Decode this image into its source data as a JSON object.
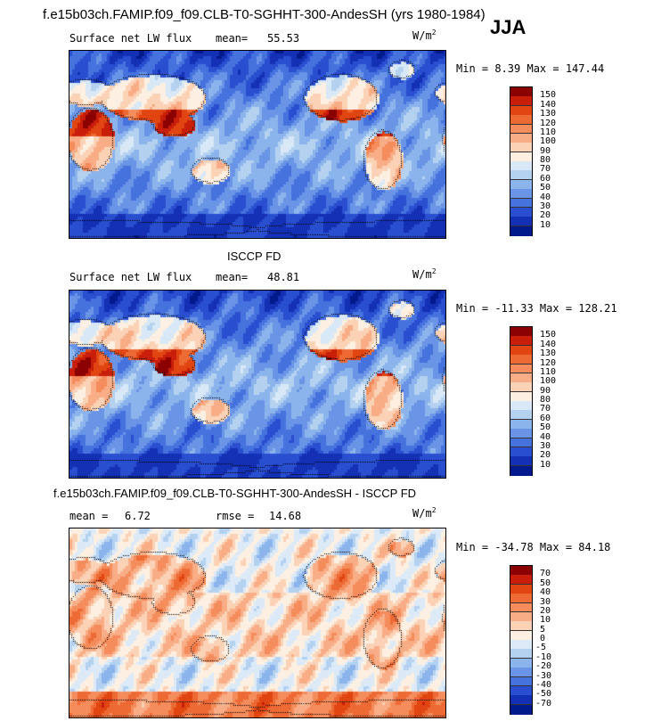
{
  "header": {
    "title": "f.e15b03ch.FAMIP.f09_f09.CLB-T0-SGHHT-300-AndesSH (yrs 1980-1984)",
    "season": "JJA"
  },
  "panels": [
    {
      "id": "model",
      "title": "",
      "variable": "Surface net LW flux",
      "mean_label": "mean=",
      "mean_value": "55.53",
      "units": "W/m",
      "units_exp": "2",
      "minmax": "Min =   8.39 Max = 147.44",
      "colorbar_labels": [
        "150",
        "140",
        "130",
        "120",
        "110",
        "100",
        "90",
        "80",
        "70",
        "60",
        "50",
        "40",
        "30",
        "20",
        "10"
      ],
      "colorbar_colors": [
        "#8b0000",
        "#c81e0a",
        "#e04512",
        "#ee6a35",
        "#f48c5c",
        "#f8ad86",
        "#fbd2b6",
        "#fdf0e2",
        "#d8e8f6",
        "#b4d2f0",
        "#8cb4ec",
        "#6a94e6",
        "#4672de",
        "#2a4ed0",
        "#1430b4",
        "#001a8c"
      ],
      "field_kind": "abs"
    },
    {
      "id": "obs",
      "title": "ISCCP FD",
      "variable": "Surface net LW flux",
      "mean_label": "mean=",
      "mean_value": "48.81",
      "units": "W/m",
      "units_exp": "2",
      "minmax": "Min = -11.33 Max = 128.21",
      "colorbar_labels": [
        "150",
        "140",
        "130",
        "120",
        "110",
        "100",
        "90",
        "80",
        "70",
        "60",
        "50",
        "40",
        "30",
        "20",
        "10"
      ],
      "colorbar_colors": [
        "#8b0000",
        "#c81e0a",
        "#e04512",
        "#ee6a35",
        "#f48c5c",
        "#f8ad86",
        "#fbd2b6",
        "#fdf0e2",
        "#d8e8f6",
        "#b4d2f0",
        "#8cb4ec",
        "#6a94e6",
        "#4672de",
        "#2a4ed0",
        "#1430b4",
        "#001a8c"
      ],
      "field_kind": "abs"
    },
    {
      "id": "diff",
      "title": "f.e15b03ch.FAMIP.f09_f09.CLB-T0-SGHHT-300-AndesSH - ISCCP FD",
      "mean_label": "mean =",
      "mean_value": "6.72",
      "rmse_label": "rmse =",
      "rmse_value": "14.68",
      "units": "W/m",
      "units_exp": "2",
      "minmax": "Min = -34.78 Max =  84.18",
      "colorbar_labels": [
        "70",
        "50",
        "40",
        "30",
        "20",
        "10",
        "5",
        "0",
        "-5",
        "-10",
        "-20",
        "-30",
        "-40",
        "-50",
        "-70"
      ],
      "colorbar_colors": [
        "#8b0000",
        "#c81e0a",
        "#e04512",
        "#ee6a35",
        "#f48c5c",
        "#f8ad86",
        "#fbd2b6",
        "#fdf0e2",
        "#dceaf8",
        "#b4d2f0",
        "#8cb4ec",
        "#6a94e6",
        "#4672de",
        "#2a4ed0",
        "#1430b4",
        "#001a8c"
      ],
      "field_kind": "diff"
    }
  ]
}
